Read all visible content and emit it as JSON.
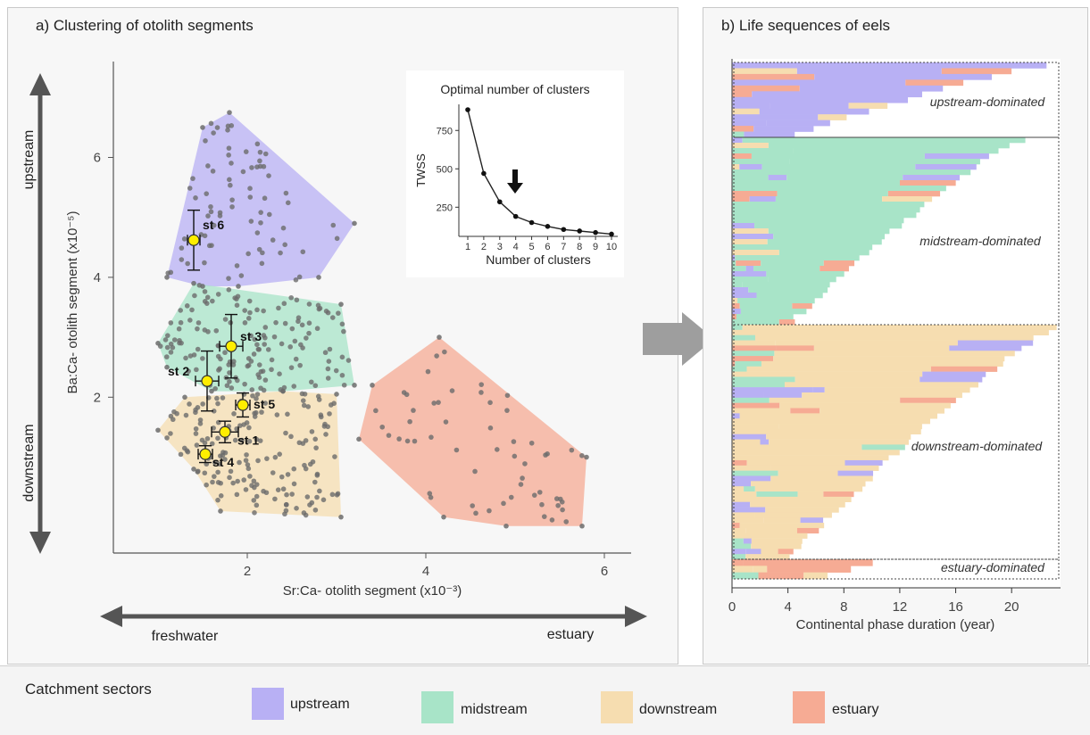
{
  "colors": {
    "upstream": "#b8b0f4",
    "midstream": "#a8e4c8",
    "downstream": "#f6ddb0",
    "estuary": "#f6ab94",
    "point": "#6c6c6c",
    "highlight": "#ffee00"
  },
  "panel_a": {
    "title": "a) Clustering of otolith segments",
    "xlabel": "Sr:Ca- otolith segment (x10⁻³)",
    "ylabel": "Ba:Ca- otolith segment (x10⁻⁵)",
    "xticks": [
      "2",
      "4",
      "6"
    ],
    "yticks": [
      "2",
      "4",
      "6"
    ],
    "arrow_up": "upstream",
    "arrow_down": "downstream",
    "arrow_left": "freshwater",
    "arrow_right": "estuary",
    "stations": [
      "st 1",
      "st 2",
      "st 3",
      "st 4",
      "st 5",
      "st 6"
    ],
    "inset": {
      "title": "Optimal number of clusters",
      "xlabel": "Number of clusters",
      "ylabel": "TWSS",
      "xticks": [
        "1",
        "2",
        "3",
        "4",
        "5",
        "6",
        "7",
        "8",
        "9",
        "10"
      ],
      "yticks": [
        "250",
        "500",
        "750"
      ]
    }
  },
  "panel_b": {
    "title": "b) Life sequences of eels",
    "xlabel": "Continental phase duration (year)",
    "xticks": [
      "0",
      "4",
      "8",
      "12",
      "16",
      "20"
    ],
    "groups": [
      "upstream-dominated",
      "midstream-dominated",
      "downstream-dominated",
      "estuary-dominated"
    ]
  },
  "legend": {
    "title": "Catchment sectors",
    "items": [
      "upstream",
      "midstream",
      "downstream",
      "estuary"
    ]
  },
  "chart_data": [
    {
      "type": "scatter",
      "title": "a) Clustering of otolith segments",
      "xlabel": "Sr:Ca- otolith segment (x10⁻³)",
      "ylabel": "Ba:Ca- otolith segment (x10⁻⁵)",
      "xlim": [
        0.5,
        6.3
      ],
      "ylim": [
        -0.6,
        7.6
      ],
      "clusters": [
        {
          "name": "upstream",
          "hull": [
            [
              1.8,
              6.75
            ],
            [
              3.2,
              4.9
            ],
            [
              2.8,
              4.0
            ],
            [
              1.9,
              3.85
            ],
            [
              1.5,
              3.85
            ],
            [
              1.1,
              4.0
            ],
            [
              1.5,
              6.5
            ]
          ]
        },
        {
          "name": "midstream",
          "hull": [
            [
              1.4,
              3.9
            ],
            [
              3.05,
              3.55
            ],
            [
              3.2,
              2.2
            ],
            [
              2.4,
              2.1
            ],
            [
              1.6,
              2.1
            ],
            [
              1.1,
              2.5
            ],
            [
              1.0,
              2.9
            ]
          ]
        },
        {
          "name": "downstream",
          "hull": [
            [
              1.0,
              1.45
            ],
            [
              1.4,
              0.8
            ],
            [
              1.7,
              0.1
            ],
            [
              3.05,
              0.0
            ],
            [
              3.0,
              2.05
            ],
            [
              2.4,
              2.1
            ],
            [
              1.3,
              2.0
            ]
          ]
        },
        {
          "name": "estuary",
          "hull": [
            [
              4.15,
              3.0
            ],
            [
              5.8,
              1.0
            ],
            [
              5.75,
              -0.15
            ],
            [
              4.9,
              -0.15
            ],
            [
              4.2,
              0.0
            ],
            [
              3.25,
              1.3
            ],
            [
              3.4,
              2.2
            ]
          ]
        }
      ],
      "stations": [
        {
          "label": "st 1",
          "x": 1.75,
          "y": 1.42,
          "xerr": 0.15,
          "yerr": 0.18
        },
        {
          "label": "st 2",
          "x": 1.55,
          "y": 2.27,
          "xerr": 0.13,
          "yerr": 0.5
        },
        {
          "label": "st 3",
          "x": 1.82,
          "y": 2.85,
          "xerr": 0.13,
          "yerr": 0.53
        },
        {
          "label": "st 4",
          "x": 1.53,
          "y": 1.05,
          "xerr": 0.08,
          "yerr": 0.14
        },
        {
          "label": "st 5",
          "x": 1.95,
          "y": 1.87,
          "xerr": 0.08,
          "yerr": 0.2
        },
        {
          "label": "st 6",
          "x": 1.4,
          "y": 4.62,
          "xerr": 0.07,
          "yerr": 0.5
        }
      ]
    },
    {
      "type": "line",
      "title": "Optimal number of clusters",
      "xlabel": "Number of clusters",
      "ylabel": "TWSS",
      "x": [
        1,
        2,
        3,
        4,
        5,
        6,
        7,
        8,
        9,
        10
      ],
      "values": [
        885,
        470,
        285,
        190,
        150,
        125,
        105,
        95,
        85,
        75
      ],
      "ylim": [
        60,
        920
      ],
      "annotation": "arrow at 4 clusters"
    },
    {
      "type": "bar",
      "title": "b) Life sequences of eels",
      "xlabel": "Continental phase duration (year)",
      "xlim": [
        0,
        23.5
      ],
      "groups": [
        {
          "name": "upstream-dominated",
          "count": 13,
          "max_duration": 22.5
        },
        {
          "name": "midstream-dominated",
          "count": 35,
          "max_duration": 21.0
        },
        {
          "name": "downstream-dominated",
          "count": 45,
          "max_duration": 23.5
        },
        {
          "name": "estuary-dominated",
          "count": 3,
          "max_duration": 10.5
        }
      ]
    }
  ]
}
